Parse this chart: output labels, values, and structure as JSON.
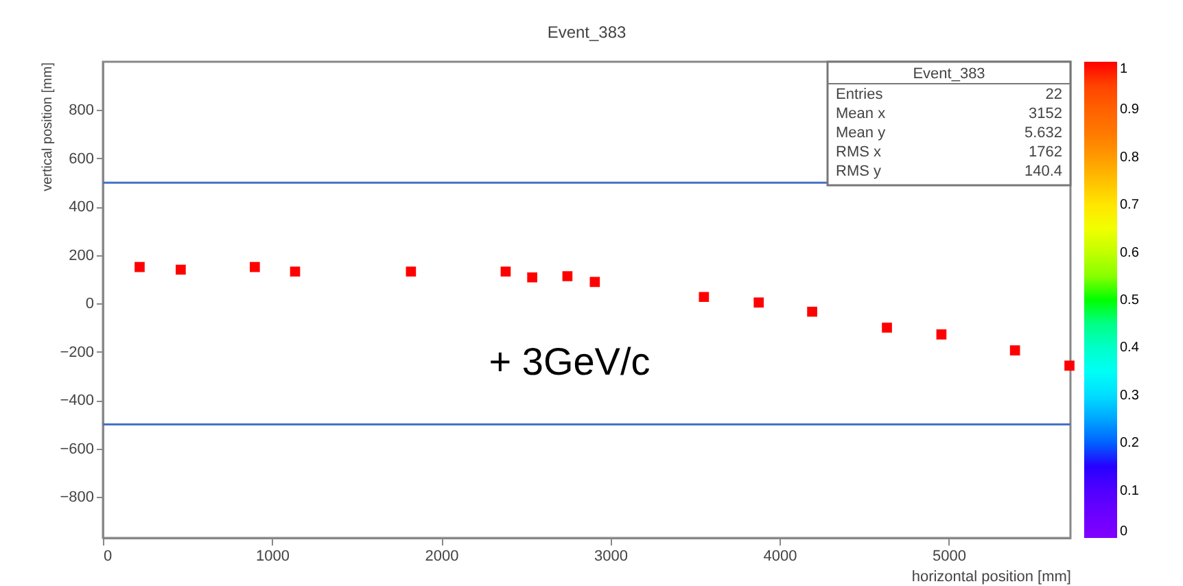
{
  "chart_data": {
    "type": "scatter",
    "title": "Event_383",
    "xlabel": "horizontal position [mm]",
    "ylabel": "vertical position [mm]",
    "x": [
      217,
      460,
      898,
      1136,
      1821,
      2381,
      2538,
      2746,
      2908,
      3553,
      3877,
      4193,
      4635,
      4957,
      5392,
      5714
    ],
    "series": [
      {
        "color": "#ff0000",
        "values": [
          151,
          140,
          151,
          132,
          132,
          132,
          108,
          113,
          89,
          27,
          4,
          -34,
          -100,
          -128,
          -194,
          -257
        ],
        "cvalues": [
          1,
          1,
          1,
          1,
          1,
          1,
          1,
          1,
          1,
          1,
          1,
          1,
          1,
          1,
          1,
          1
        ]
      }
    ],
    "xlim": [
      0,
      5720
    ],
    "xticks": [
      0,
      1000,
      2000,
      3000,
      4000,
      5000
    ],
    "ylim": [
      -970,
      1000
    ],
    "yticks": [
      -800,
      -600,
      -400,
      -200,
      0,
      200,
      400,
      600,
      800
    ],
    "clim": [
      0,
      1
    ],
    "cticks": [
      0,
      0.1,
      0.2,
      0.3,
      0.4,
      0.5,
      0.6,
      0.7,
      0.8,
      0.9,
      1
    ],
    "marker": "square",
    "grid": false,
    "ref_lines": [
      {
        "axis": "y",
        "value": 500,
        "color": "#4472c4"
      },
      {
        "axis": "y",
        "value": -500,
        "color": "#4472c4"
      }
    ],
    "annotations": [
      "+ 3GeV/c",
      "Event_383",
      "Entries",
      "22",
      "Mean x",
      "3152",
      "Mean y",
      "5.632",
      "RMS x",
      "1762",
      "RMS y",
      "140.4"
    ]
  }
}
